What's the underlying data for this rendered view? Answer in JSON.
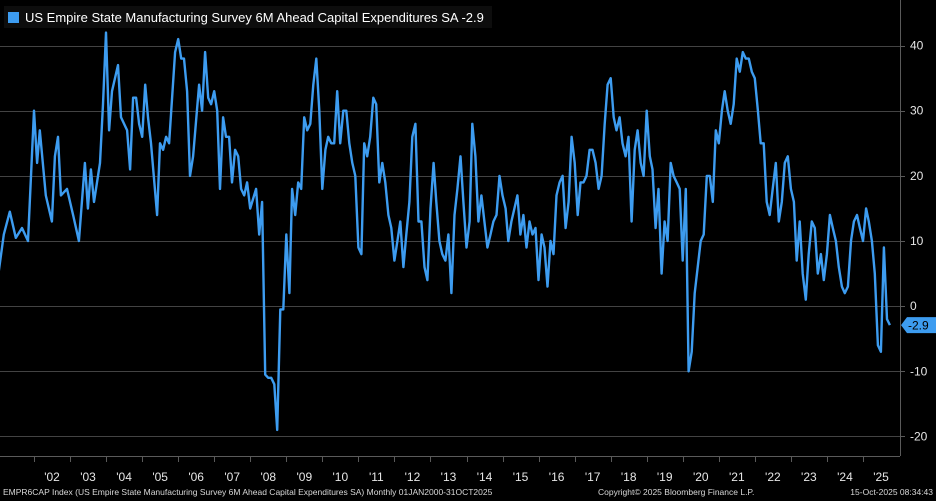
{
  "chart_data": {
    "type": "line",
    "title": "US Empire State Manufacturing Survey 6M Ahead Capital Expenditures SA",
    "series": [
      {
        "name": "US Empire State Manufacturing Survey 6M Ahead Capital Expenditures SA",
        "color": "#3d9cf0",
        "last_value_label": "-2.9"
      }
    ],
    "x_tick_labels": [
      "'02",
      "'03",
      "'04",
      "'05",
      "'06",
      "'07",
      "'08",
      "'09",
      "'10",
      "'11",
      "'12",
      "'13",
      "'14",
      "'15",
      "'16",
      "'17",
      "'18",
      "'19",
      "'20",
      "'21",
      "'22",
      "'23",
      "'24",
      "'25"
    ],
    "x_tick_years": [
      2002,
      2003,
      2004,
      2005,
      2006,
      2007,
      2008,
      2009,
      2010,
      2011,
      2012,
      2013,
      2014,
      2015,
      2016,
      2017,
      2018,
      2019,
      2020,
      2021,
      2022,
      2023,
      2024,
      2025
    ],
    "ylim": [
      -23,
      47
    ],
    "y_ticks": [
      -20,
      -10,
      0,
      10,
      20,
      30,
      40
    ],
    "y_tick_labels": [
      "-20",
      "-10",
      "0",
      "10",
      "20",
      "30",
      "40"
    ],
    "grid": true,
    "points": [
      [
        "2001-01-01",
        4.5
      ],
      [
        "2001-03-01",
        11
      ],
      [
        "2001-05-01",
        14.5
      ],
      [
        "2001-07-01",
        10.5
      ],
      [
        "2001-09-01",
        12
      ],
      [
        "2001-11-01",
        10
      ],
      [
        "2002-01-01",
        30
      ],
      [
        "2002-02-01",
        22
      ],
      [
        "2002-03-01",
        27
      ],
      [
        "2002-05-01",
        17
      ],
      [
        "2002-07-01",
        13
      ],
      [
        "2002-08-01",
        23
      ],
      [
        "2002-09-01",
        26
      ],
      [
        "2002-10-01",
        17
      ],
      [
        "2002-12-01",
        18
      ],
      [
        "2003-02-01",
        14
      ],
      [
        "2003-04-01",
        10
      ],
      [
        "2003-06-01",
        22
      ],
      [
        "2003-07-01",
        15
      ],
      [
        "2003-08-01",
        21
      ],
      [
        "2003-09-01",
        16
      ],
      [
        "2003-11-01",
        22
      ],
      [
        "2003-12-01",
        31
      ],
      [
        "2004-01-01",
        42
      ],
      [
        "2004-02-01",
        27
      ],
      [
        "2004-03-01",
        33
      ],
      [
        "2004-05-01",
        37
      ],
      [
        "2004-06-01",
        29
      ],
      [
        "2004-08-01",
        27
      ],
      [
        "2004-09-01",
        21
      ],
      [
        "2004-10-01",
        32
      ],
      [
        "2004-11-01",
        32
      ],
      [
        "2004-12-01",
        28
      ],
      [
        "2005-01-01",
        26
      ],
      [
        "2005-02-01",
        34
      ],
      [
        "2005-03-01",
        29
      ],
      [
        "2005-04-01",
        25
      ],
      [
        "2005-06-01",
        14
      ],
      [
        "2005-07-01",
        25
      ],
      [
        "2005-08-01",
        24
      ],
      [
        "2005-09-01",
        26
      ],
      [
        "2005-10-01",
        25
      ],
      [
        "2005-12-01",
        39
      ],
      [
        "2006-01-01",
        41
      ],
      [
        "2006-02-01",
        38
      ],
      [
        "2006-03-01",
        38
      ],
      [
        "2006-04-01",
        33
      ],
      [
        "2006-05-01",
        20
      ],
      [
        "2006-06-01",
        23
      ],
      [
        "2006-08-01",
        34
      ],
      [
        "2006-09-01",
        30
      ],
      [
        "2006-10-01",
        39
      ],
      [
        "2006-11-01",
        32
      ],
      [
        "2006-12-01",
        31
      ],
      [
        "2007-01-01",
        33
      ],
      [
        "2007-02-01",
        30
      ],
      [
        "2007-03-01",
        18
      ],
      [
        "2007-04-01",
        29
      ],
      [
        "2007-05-01",
        26
      ],
      [
        "2007-06-01",
        26
      ],
      [
        "2007-07-01",
        19
      ],
      [
        "2007-08-01",
        24
      ],
      [
        "2007-09-01",
        23
      ],
      [
        "2007-10-01",
        18
      ],
      [
        "2007-11-01",
        17
      ],
      [
        "2007-12-01",
        19
      ],
      [
        "2008-01-01",
        15
      ],
      [
        "2008-03-01",
        18
      ],
      [
        "2008-04-01",
        11
      ],
      [
        "2008-05-01",
        16
      ],
      [
        "2008-06-01",
        -10.5
      ],
      [
        "2008-07-01",
        -11
      ],
      [
        "2008-08-01",
        -11
      ],
      [
        "2008-09-01",
        -12
      ],
      [
        "2008-10-01",
        -19
      ],
      [
        "2008-11-01",
        -0.5
      ],
      [
        "2008-12-01",
        -0.5
      ],
      [
        "2009-01-01",
        11
      ],
      [
        "2009-02-01",
        2
      ],
      [
        "2009-03-01",
        18
      ],
      [
        "2009-04-01",
        14
      ],
      [
        "2009-05-01",
        19
      ],
      [
        "2009-06-01",
        18
      ],
      [
        "2009-07-01",
        29
      ],
      [
        "2009-08-01",
        27
      ],
      [
        "2009-09-01",
        28
      ],
      [
        "2009-10-01",
        34
      ],
      [
        "2009-11-01",
        38
      ],
      [
        "2009-12-01",
        30
      ],
      [
        "2010-01-01",
        18
      ],
      [
        "2010-02-01",
        24
      ],
      [
        "2010-03-01",
        26
      ],
      [
        "2010-04-01",
        25
      ],
      [
        "2010-05-01",
        25
      ],
      [
        "2010-06-01",
        33
      ],
      [
        "2010-07-01",
        25
      ],
      [
        "2010-08-01",
        30
      ],
      [
        "2010-09-01",
        30
      ],
      [
        "2010-10-01",
        25
      ],
      [
        "2010-11-01",
        22
      ],
      [
        "2010-12-01",
        20
      ],
      [
        "2011-01-01",
        9
      ],
      [
        "2011-02-01",
        8
      ],
      [
        "2011-03-01",
        25
      ],
      [
        "2011-04-01",
        23
      ],
      [
        "2011-05-01",
        26
      ],
      [
        "2011-06-01",
        32
      ],
      [
        "2011-07-01",
        31
      ],
      [
        "2011-08-01",
        19
      ],
      [
        "2011-09-01",
        22
      ],
      [
        "2011-10-01",
        19
      ],
      [
        "2011-11-01",
        14
      ],
      [
        "2011-12-01",
        12
      ],
      [
        "2012-01-01",
        7
      ],
      [
        "2012-02-01",
        10
      ],
      [
        "2012-03-01",
        13
      ],
      [
        "2012-04-01",
        6
      ],
      [
        "2012-05-01",
        11
      ],
      [
        "2012-06-01",
        16
      ],
      [
        "2012-07-01",
        26
      ],
      [
        "2012-08-01",
        28
      ],
      [
        "2012-09-01",
        13
      ],
      [
        "2012-10-01",
        13
      ],
      [
        "2012-11-01",
        6
      ],
      [
        "2012-12-01",
        4
      ],
      [
        "2013-01-01",
        15
      ],
      [
        "2013-02-01",
        22
      ],
      [
        "2013-03-01",
        16
      ],
      [
        "2013-04-01",
        10
      ],
      [
        "2013-05-01",
        8
      ],
      [
        "2013-06-01",
        7
      ],
      [
        "2013-07-01",
        11
      ],
      [
        "2013-08-01",
        2
      ],
      [
        "2013-09-01",
        14
      ],
      [
        "2013-10-01",
        18
      ],
      [
        "2013-11-01",
        23
      ],
      [
        "2013-12-01",
        16
      ],
      [
        "2014-01-01",
        9
      ],
      [
        "2014-02-01",
        13
      ],
      [
        "2014-03-01",
        28
      ],
      [
        "2014-04-01",
        23
      ],
      [
        "2014-05-01",
        13
      ],
      [
        "2014-06-01",
        17
      ],
      [
        "2014-07-01",
        13
      ],
      [
        "2014-08-01",
        9
      ],
      [
        "2014-09-01",
        11
      ],
      [
        "2014-10-01",
        13
      ],
      [
        "2014-11-01",
        14
      ],
      [
        "2014-12-01",
        20
      ],
      [
        "2015-01-01",
        17
      ],
      [
        "2015-02-01",
        15
      ],
      [
        "2015-03-01",
        10
      ],
      [
        "2015-04-01",
        13
      ],
      [
        "2015-05-01",
        15
      ],
      [
        "2015-06-01",
        17
      ],
      [
        "2015-07-01",
        11
      ],
      [
        "2015-08-01",
        14
      ],
      [
        "2015-09-01",
        9
      ],
      [
        "2015-10-01",
        13
      ],
      [
        "2015-11-01",
        11
      ],
      [
        "2015-12-01",
        12
      ],
      [
        "2016-01-01",
        4
      ],
      [
        "2016-02-01",
        11
      ],
      [
        "2016-03-01",
        9
      ],
      [
        "2016-04-01",
        3
      ],
      [
        "2016-05-01",
        10
      ],
      [
        "2016-06-01",
        8
      ],
      [
        "2016-07-01",
        17
      ],
      [
        "2016-08-01",
        19
      ],
      [
        "2016-09-01",
        20
      ],
      [
        "2016-10-01",
        12
      ],
      [
        "2016-11-01",
        16
      ],
      [
        "2016-12-01",
        26
      ],
      [
        "2017-01-01",
        22
      ],
      [
        "2017-02-01",
        14
      ],
      [
        "2017-03-01",
        19
      ],
      [
        "2017-04-01",
        19
      ],
      [
        "2017-05-01",
        20
      ],
      [
        "2017-06-01",
        24
      ],
      [
        "2017-07-01",
        24
      ],
      [
        "2017-08-01",
        22
      ],
      [
        "2017-09-01",
        18
      ],
      [
        "2017-10-01",
        20
      ],
      [
        "2017-11-01",
        28
      ],
      [
        "2017-12-01",
        34
      ],
      [
        "2018-01-01",
        35
      ],
      [
        "2018-02-01",
        29
      ],
      [
        "2018-03-01",
        27
      ],
      [
        "2018-04-01",
        29
      ],
      [
        "2018-05-01",
        25
      ],
      [
        "2018-06-01",
        23
      ],
      [
        "2018-07-01",
        26
      ],
      [
        "2018-08-01",
        13
      ],
      [
        "2018-09-01",
        24
      ],
      [
        "2018-10-01",
        27
      ],
      [
        "2018-11-01",
        22
      ],
      [
        "2018-12-01",
        20
      ],
      [
        "2019-01-01",
        30
      ],
      [
        "2019-02-01",
        23
      ],
      [
        "2019-03-01",
        21
      ],
      [
        "2019-04-01",
        12
      ],
      [
        "2019-05-01",
        18
      ],
      [
        "2019-06-01",
        5
      ],
      [
        "2019-07-01",
        13
      ],
      [
        "2019-08-01",
        10
      ],
      [
        "2019-09-01",
        22
      ],
      [
        "2019-10-01",
        20
      ],
      [
        "2019-11-01",
        19
      ],
      [
        "2019-12-01",
        18
      ],
      [
        "2020-01-01",
        7
      ],
      [
        "2020-02-01",
        18
      ],
      [
        "2020-03-01",
        -10
      ],
      [
        "2020-04-01",
        -7
      ],
      [
        "2020-05-01",
        2
      ],
      [
        "2020-06-01",
        6
      ],
      [
        "2020-07-01",
        10
      ],
      [
        "2020-08-01",
        11
      ],
      [
        "2020-09-01",
        20
      ],
      [
        "2020-10-01",
        20
      ],
      [
        "2020-11-01",
        16
      ],
      [
        "2020-12-01",
        27
      ],
      [
        "2021-01-01",
        25
      ],
      [
        "2021-02-01",
        30
      ],
      [
        "2021-03-01",
        33
      ],
      [
        "2021-04-01",
        30
      ],
      [
        "2021-05-01",
        28
      ],
      [
        "2021-06-01",
        31
      ],
      [
        "2021-07-01",
        38
      ],
      [
        "2021-08-01",
        36
      ],
      [
        "2021-09-01",
        39
      ],
      [
        "2021-10-01",
        38
      ],
      [
        "2021-11-01",
        38
      ],
      [
        "2021-12-01",
        36
      ],
      [
        "2022-01-01",
        35
      ],
      [
        "2022-02-01",
        30
      ],
      [
        "2022-03-01",
        25
      ],
      [
        "2022-04-01",
        25
      ],
      [
        "2022-05-01",
        16
      ],
      [
        "2022-06-01",
        14
      ],
      [
        "2022-07-01",
        18
      ],
      [
        "2022-08-01",
        22
      ],
      [
        "2022-09-01",
        13
      ],
      [
        "2022-10-01",
        16
      ],
      [
        "2022-11-01",
        22
      ],
      [
        "2022-12-01",
        23
      ],
      [
        "2023-01-01",
        18
      ],
      [
        "2023-02-01",
        16
      ],
      [
        "2023-03-01",
        7
      ],
      [
        "2023-04-01",
        13
      ],
      [
        "2023-05-01",
        5
      ],
      [
        "2023-06-01",
        1
      ],
      [
        "2023-07-01",
        8
      ],
      [
        "2023-08-01",
        13
      ],
      [
        "2023-09-01",
        12
      ],
      [
        "2023-10-01",
        5
      ],
      [
        "2023-11-01",
        8
      ],
      [
        "2023-12-01",
        4
      ],
      [
        "2024-01-01",
        8
      ],
      [
        "2024-02-01",
        14
      ],
      [
        "2024-03-01",
        12
      ],
      [
        "2024-04-01",
        10
      ],
      [
        "2024-05-01",
        6
      ],
      [
        "2024-06-01",
        3
      ],
      [
        "2024-07-01",
        2
      ],
      [
        "2024-08-01",
        3
      ],
      [
        "2024-09-01",
        10
      ],
      [
        "2024-10-01",
        13
      ],
      [
        "2024-11-01",
        14
      ],
      [
        "2024-12-01",
        12
      ],
      [
        "2025-01-01",
        10
      ],
      [
        "2025-02-01",
        15
      ],
      [
        "2025-03-01",
        13
      ],
      [
        "2025-04-01",
        10
      ],
      [
        "2025-05-01",
        5
      ],
      [
        "2025-06-01",
        -6
      ],
      [
        "2025-07-01",
        -7
      ],
      [
        "2025-08-01",
        9
      ],
      [
        "2025-09-01",
        -2
      ],
      [
        "2025-10-01",
        -2.9
      ]
    ]
  },
  "footer": {
    "left": "EMPR6CAP Index (US Empire State Manufacturing Survey 6M Ahead Capital Expenditures SA) Monthly 01JAN2000-31OCT2025",
    "middle": "Copyright© 2025 Bloomberg Finance L.P.",
    "right": "15-Oct-2025 08:34:43"
  },
  "legend": {
    "text": "US Empire State Manufacturing Survey 6M Ahead Capital Expenditures SA -2.9"
  },
  "colors": {
    "background": "#000000",
    "line": "#3d9cf0",
    "grid": "#5a5a5a",
    "axis_text": "#e6e6e6"
  }
}
